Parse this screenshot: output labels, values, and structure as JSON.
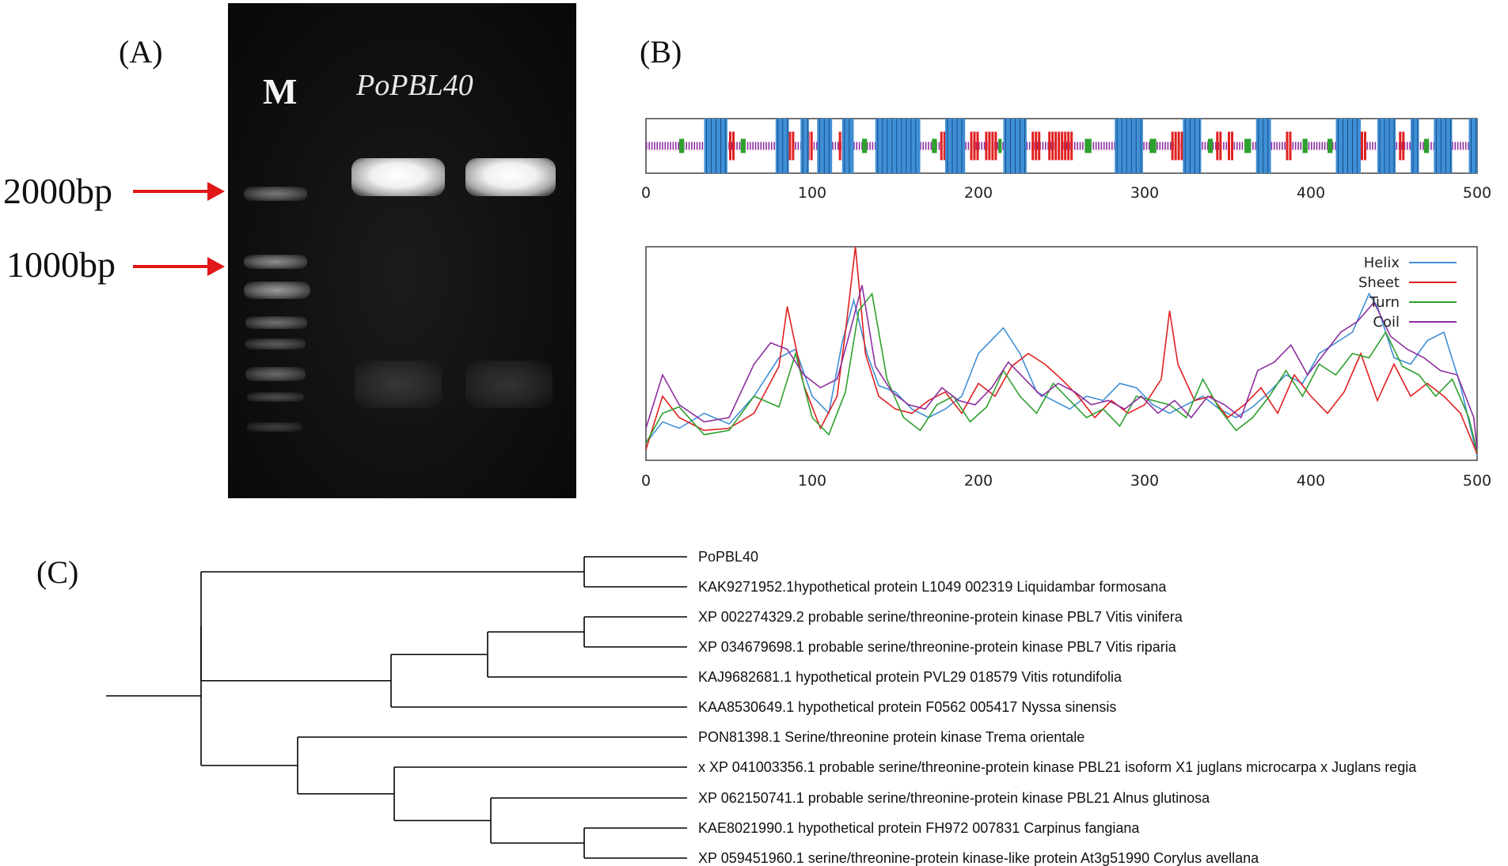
{
  "panels": {
    "a": {
      "label": "(A)",
      "marker_lane_label": "M",
      "sample_label": "PoPBL40",
      "markers": [
        {
          "text": "2000bp",
          "arrow_color": "#e01818"
        },
        {
          "text": "1000bp",
          "arrow_color": "#e01818"
        }
      ]
    },
    "b": {
      "label": "(B)"
    },
    "c": {
      "label": "(C)"
    }
  },
  "chart_data": [
    {
      "type": "strip",
      "description_role": "secondary-structure track",
      "xlim": [
        0,
        500
      ],
      "x_ticks": [
        "0",
        "100",
        "200",
        "300",
        "400",
        "500"
      ],
      "colors": {
        "helix": "#3f8fd6",
        "sheet": "#e02020",
        "turn": "#2ea02e",
        "coil": "#8e2ea0"
      },
      "helix_segments": [
        [
          35,
          49
        ],
        [
          78,
          86
        ],
        [
          93,
          98
        ],
        [
          103,
          112
        ],
        [
          118,
          125
        ],
        [
          138,
          165
        ],
        [
          180,
          192
        ],
        [
          215,
          229
        ],
        [
          282,
          299
        ],
        [
          323,
          334
        ],
        [
          367,
          376
        ],
        [
          415,
          430
        ],
        [
          440,
          451
        ],
        [
          460,
          465
        ],
        [
          474,
          485
        ],
        [
          495,
          500
        ]
      ],
      "sheet_segments": [
        [
          50,
          53
        ],
        [
          84,
          88
        ],
        [
          97,
          99
        ],
        [
          106,
          108
        ],
        [
          116,
          120
        ],
        [
          177,
          183
        ],
        [
          195,
          200
        ],
        [
          204,
          211
        ],
        [
          232,
          236
        ],
        [
          242,
          256
        ],
        [
          316,
          322
        ],
        [
          343,
          346
        ],
        [
          350,
          352
        ],
        [
          385,
          388
        ],
        [
          430,
          433
        ],
        [
          453,
          456
        ]
      ],
      "turn_segments": [
        [
          20,
          23
        ],
        [
          57,
          60
        ],
        [
          130,
          133
        ],
        [
          172,
          175
        ],
        [
          212,
          214
        ],
        [
          264,
          268
        ],
        [
          303,
          307
        ],
        [
          338,
          341
        ],
        [
          360,
          364
        ],
        [
          395,
          398
        ],
        [
          410,
          413
        ],
        [
          468,
          471
        ]
      ]
    },
    {
      "type": "line",
      "xlim": [
        0,
        500
      ],
      "ylim": [
        0,
        1
      ],
      "x_ticks": [
        "0",
        "100",
        "200",
        "300",
        "400",
        "500"
      ],
      "legend_position": "top-right",
      "series": [
        {
          "name": "Helix",
          "color": "#3f8fd6",
          "x": [
            0,
            10,
            20,
            35,
            50,
            65,
            80,
            90,
            100,
            110,
            118,
            125,
            133,
            140,
            150,
            160,
            170,
            180,
            190,
            200,
            210,
            215,
            225,
            235,
            245,
            255,
            265,
            275,
            285,
            295,
            305,
            315,
            325,
            335,
            345,
            355,
            365,
            375,
            385,
            395,
            405,
            415,
            425,
            435,
            440,
            450,
            460,
            470,
            480,
            490,
            500
          ],
          "y": [
            0.08,
            0.18,
            0.15,
            0.22,
            0.17,
            0.3,
            0.48,
            0.52,
            0.3,
            0.22,
            0.55,
            0.75,
            0.5,
            0.35,
            0.32,
            0.24,
            0.2,
            0.24,
            0.3,
            0.5,
            0.58,
            0.62,
            0.5,
            0.32,
            0.28,
            0.24,
            0.3,
            0.28,
            0.36,
            0.34,
            0.26,
            0.22,
            0.26,
            0.3,
            0.24,
            0.2,
            0.25,
            0.32,
            0.4,
            0.36,
            0.5,
            0.55,
            0.6,
            0.78,
            0.72,
            0.48,
            0.45,
            0.56,
            0.6,
            0.35,
            0.02
          ]
        },
        {
          "name": "Sheet",
          "color": "#e02020",
          "x": [
            0,
            10,
            20,
            35,
            50,
            65,
            80,
            85,
            95,
            105,
            115,
            120,
            126,
            132,
            140,
            150,
            160,
            170,
            180,
            190,
            200,
            210,
            220,
            230,
            240,
            250,
            260,
            270,
            280,
            290,
            300,
            310,
            315,
            320,
            330,
            340,
            350,
            360,
            370,
            380,
            390,
            400,
            410,
            420,
            430,
            440,
            450,
            460,
            470,
            480,
            490,
            500
          ],
          "y": [
            0.05,
            0.3,
            0.2,
            0.14,
            0.15,
            0.22,
            0.44,
            0.72,
            0.35,
            0.15,
            0.3,
            0.6,
            1.0,
            0.5,
            0.3,
            0.24,
            0.22,
            0.28,
            0.32,
            0.22,
            0.36,
            0.3,
            0.44,
            0.5,
            0.45,
            0.38,
            0.3,
            0.2,
            0.28,
            0.22,
            0.26,
            0.38,
            0.7,
            0.45,
            0.28,
            0.3,
            0.2,
            0.26,
            0.34,
            0.22,
            0.4,
            0.3,
            0.22,
            0.32,
            0.5,
            0.28,
            0.45,
            0.3,
            0.36,
            0.3,
            0.22,
            0.03
          ]
        },
        {
          "name": "Turn",
          "color": "#2ea02e",
          "x": [
            0,
            10,
            20,
            35,
            50,
            65,
            80,
            90,
            100,
            110,
            120,
            128,
            136,
            145,
            155,
            165,
            175,
            185,
            195,
            205,
            215,
            225,
            235,
            245,
            255,
            265,
            275,
            285,
            295,
            305,
            315,
            325,
            335,
            345,
            355,
            365,
            375,
            385,
            395,
            405,
            415,
            425,
            435,
            445,
            455,
            465,
            475,
            485,
            495,
            500
          ],
          "y": [
            0.08,
            0.22,
            0.25,
            0.12,
            0.14,
            0.3,
            0.25,
            0.5,
            0.2,
            0.12,
            0.32,
            0.7,
            0.78,
            0.38,
            0.2,
            0.14,
            0.26,
            0.3,
            0.18,
            0.25,
            0.42,
            0.3,
            0.22,
            0.36,
            0.28,
            0.2,
            0.24,
            0.16,
            0.3,
            0.28,
            0.26,
            0.2,
            0.38,
            0.24,
            0.14,
            0.2,
            0.3,
            0.42,
            0.3,
            0.45,
            0.4,
            0.5,
            0.48,
            0.6,
            0.44,
            0.4,
            0.3,
            0.38,
            0.2,
            0.04
          ]
        },
        {
          "name": "Coil",
          "color": "#8e2ea0",
          "x": [
            0,
            10,
            20,
            35,
            50,
            65,
            75,
            85,
            95,
            105,
            115,
            122,
            130,
            138,
            148,
            158,
            168,
            178,
            188,
            198,
            208,
            218,
            228,
            238,
            248,
            258,
            268,
            278,
            288,
            298,
            308,
            318,
            328,
            338,
            348,
            358,
            368,
            378,
            388,
            398,
            408,
            418,
            428,
            438,
            448,
            458,
            468,
            478,
            488,
            498,
            500
          ],
          "y": [
            0.15,
            0.4,
            0.26,
            0.18,
            0.2,
            0.45,
            0.55,
            0.52,
            0.4,
            0.34,
            0.38,
            0.58,
            0.82,
            0.44,
            0.32,
            0.26,
            0.24,
            0.34,
            0.28,
            0.26,
            0.34,
            0.46,
            0.38,
            0.3,
            0.36,
            0.32,
            0.26,
            0.28,
            0.24,
            0.3,
            0.22,
            0.28,
            0.2,
            0.3,
            0.26,
            0.2,
            0.42,
            0.46,
            0.54,
            0.4,
            0.5,
            0.6,
            0.65,
            0.74,
            0.58,
            0.52,
            0.48,
            0.42,
            0.4,
            0.2,
            0.05
          ]
        }
      ]
    }
  ],
  "tree": {
    "branch_color": "#000000",
    "leaves": [
      "PoPBL40",
      "KAK9271952.1hypothetical protein L1049 002319 Liquidambar formosana",
      "XP 002274329.2 probable serine/threonine-protein kinase PBL7 Vitis vinifera",
      "XP 034679698.1 probable serine/threonine-protein kinase PBL7 Vitis riparia",
      "KAJ9682681.1 hypothetical protein PVL29 018579 Vitis rotundifolia",
      "KAA8530649.1 hypothetical protein F0562 005417 Nyssa sinensis",
      "PON81398.1 Serine/threonine protein kinase Trema orientale",
      "x XP 041003356.1 probable serine/threonine-protein kinase PBL21 isoform X1 juglans microcarpa x Juglans regia",
      "XP 062150741.1 probable serine/threonine-protein kinase PBL21 Alnus glutinosa",
      "KAE8021990.1 hypothetical protein FH972 007831 Carpinus fangiana",
      "XP 059451960.1 serine/threonine-protein kinase-like protein At3g51990 Corylus avellana"
    ]
  }
}
